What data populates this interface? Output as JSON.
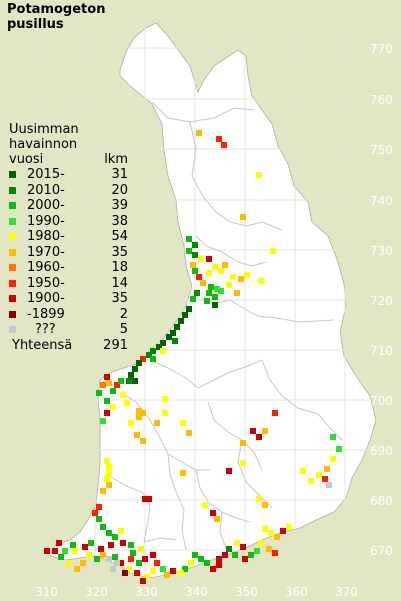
{
  "title": {
    "line1": "Potamogeton",
    "line2": "pusillus"
  },
  "legend": {
    "header_line1": "Uusimman",
    "header_line2": "havainnon",
    "header_line3": "vuosi",
    "header_count": "lkm",
    "items": [
      {
        "label": "2015-",
        "count": "31",
        "color": "#006600"
      },
      {
        "label": "2010-",
        "count": "20",
        "color": "#008c00"
      },
      {
        "label": "2000-",
        "count": "39",
        "color": "#10bb10"
      },
      {
        "label": "1990-",
        "count": "38",
        "color": "#30e030"
      },
      {
        "label": "1980-",
        "count": "54",
        "color": "#ffff00"
      },
      {
        "label": "1970-",
        "count": "35",
        "color": "#ffbb00"
      },
      {
        "label": "1960-",
        "count": "18",
        "color": "#ff7700"
      },
      {
        "label": "1950-",
        "count": "14",
        "color": "#ff2000"
      },
      {
        "label": "1900-",
        "count": "35",
        "color": "#cc0000"
      },
      {
        "label": "-1899",
        "count": "2",
        "color": "#880000"
      },
      {
        "label": "???",
        "count": "5",
        "color": "#c8c8c8"
      }
    ],
    "total_label": "Yhteensä",
    "total_count": "291"
  },
  "grid": {
    "north_labels": [
      "770",
      "760",
      "750",
      "740",
      "730",
      "720",
      "710",
      "700",
      "690",
      "680",
      "670"
    ],
    "east_labels": [
      "310",
      "320",
      "330",
      "340",
      "350",
      "360",
      "370"
    ]
  },
  "colors": {
    "background": "#e2e6c5",
    "land": "#ffffff",
    "grid_lines": "#e4e4d4",
    "borders": "#c8c8c8",
    "coast": "#b0b0a0"
  }
}
